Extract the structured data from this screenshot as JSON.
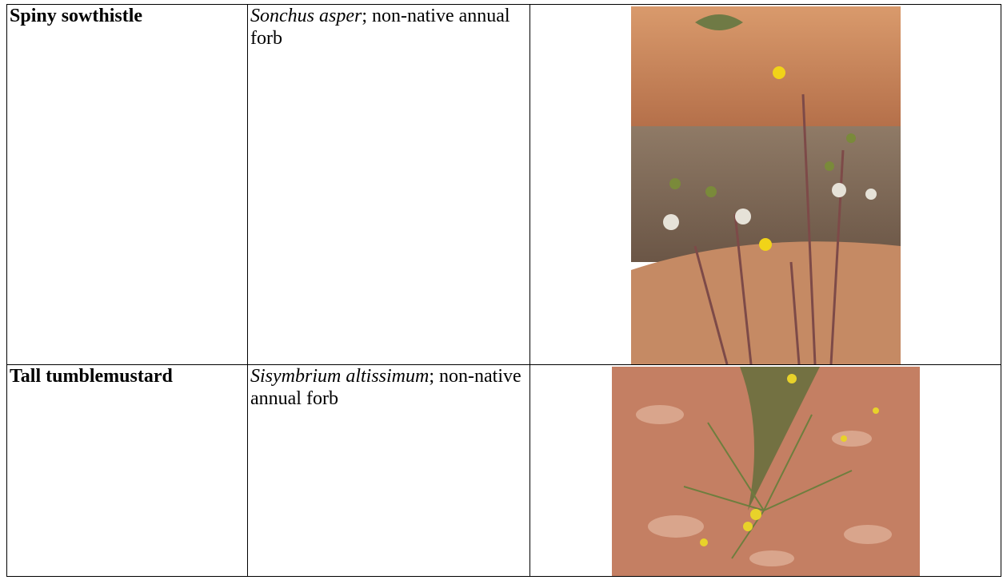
{
  "table": {
    "rows": [
      {
        "common_name": "Spiny sowthistle",
        "scientific_name": "Sonchus asper",
        "description": "; non-native annual forb"
      },
      {
        "common_name": "Tall tumblemustard",
        "scientific_name": "Sisymbrium altissimum",
        "description": "; non-native annual forb"
      }
    ]
  }
}
